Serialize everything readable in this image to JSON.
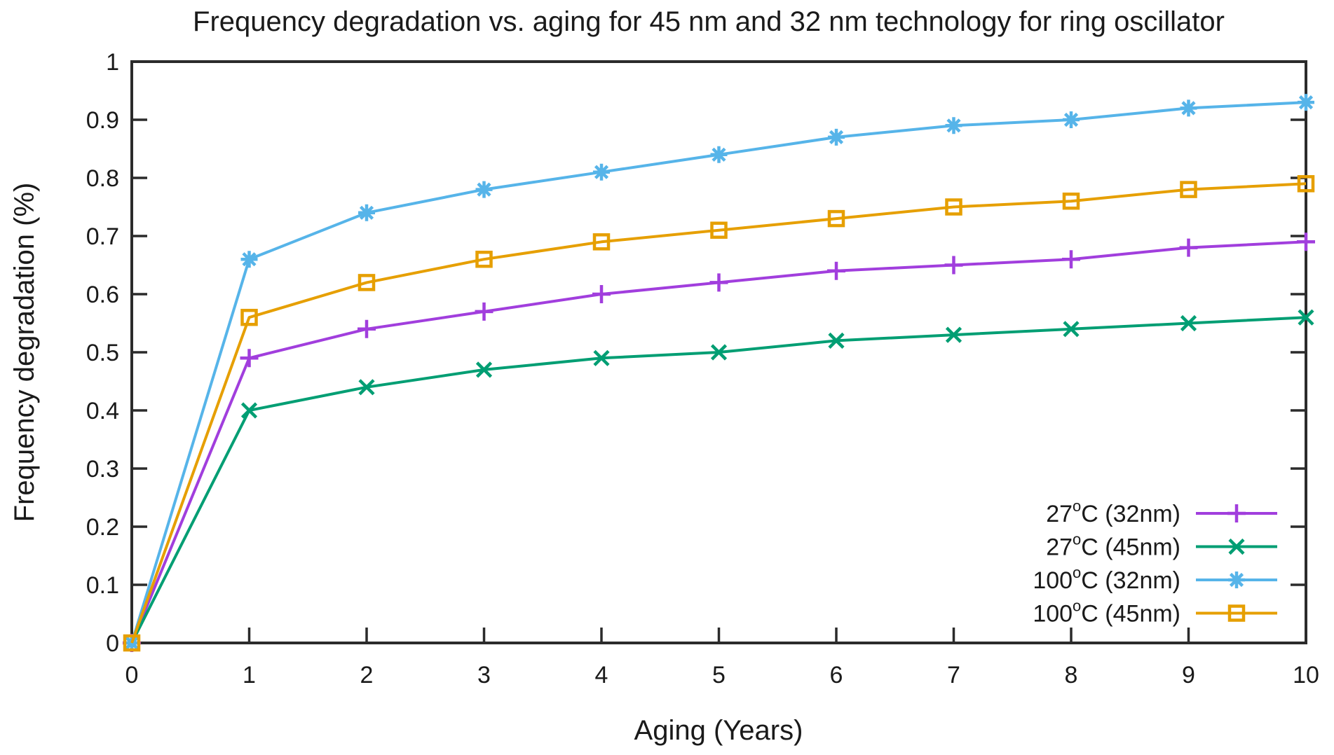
{
  "title": "Frequency degradation vs. aging for 45 nm and 32 nm technology for ring oscillator",
  "chart_data": {
    "type": "line",
    "title": "Frequency degradation vs. aging for 45 nm and 32 nm technology for ring oscillator",
    "xlabel": "Aging (Years)",
    "ylabel": "Frequency degradation (%)",
    "xlim": [
      0,
      10
    ],
    "ylim": [
      0,
      1
    ],
    "grid": false,
    "legend_position": "inside bottom-right",
    "axis_color": "#2b2b2b",
    "text_color": "#1a1a1a",
    "xticks": [
      0,
      1,
      2,
      3,
      4,
      5,
      6,
      7,
      8,
      9,
      10
    ],
    "xtick_labels": [
      "0",
      "1",
      "2",
      "3",
      "4",
      "5",
      "6",
      "7",
      "8",
      "9",
      "10"
    ],
    "yticks": [
      0,
      0.1,
      0.2,
      0.3,
      0.4,
      0.5,
      0.6,
      0.7,
      0.8,
      0.9,
      1
    ],
    "ytick_labels": [
      "0",
      "0.1",
      "0.2",
      "0.3",
      "0.4",
      "0.5",
      "0.6",
      "0.7",
      "0.8",
      "0.9",
      "1"
    ],
    "x": [
      0,
      1,
      2,
      3,
      4,
      5,
      6,
      7,
      8,
      9,
      10
    ],
    "series": [
      {
        "name": "27°C  (32nm)",
        "color": "#a13edd",
        "marker": "plus",
        "values": [
          0,
          0.49,
          0.54,
          0.57,
          0.6,
          0.62,
          0.64,
          0.65,
          0.66,
          0.68,
          0.69
        ]
      },
      {
        "name": "27°C  (45nm)",
        "color": "#009e73",
        "marker": "cross",
        "values": [
          0,
          0.4,
          0.44,
          0.47,
          0.49,
          0.5,
          0.52,
          0.53,
          0.54,
          0.55,
          0.56
        ]
      },
      {
        "name": "100°C  (32nm)",
        "color": "#56b4e9",
        "marker": "asterisk",
        "values": [
          0,
          0.66,
          0.74,
          0.78,
          0.81,
          0.84,
          0.87,
          0.89,
          0.9,
          0.92,
          0.93
        ]
      },
      {
        "name": "100°C  (45nm)",
        "color": "#e69f00",
        "marker": "square",
        "values": [
          0,
          0.56,
          0.62,
          0.66,
          0.69,
          0.71,
          0.73,
          0.75,
          0.76,
          0.78,
          0.79
        ]
      }
    ]
  }
}
